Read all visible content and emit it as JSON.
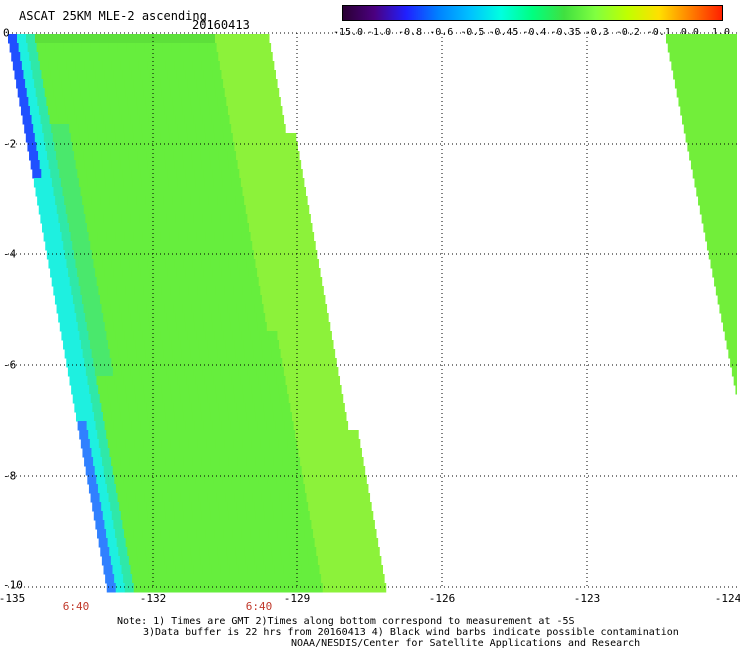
{
  "title": "ASCAT 25KM MLE-2 ascending",
  "date": "20160413",
  "colorbar": {
    "labels": [
      "-15.0",
      "-1.0",
      "-0.8",
      "-0.6",
      "-0.5",
      "-0.45",
      "-0.4",
      "-0.35",
      "-0.3",
      "-0.2",
      "-0.1",
      "0.0",
      "1.0"
    ],
    "colors": [
      "#2a0033",
      "#4b0080",
      "#2020ff",
      "#0080ff",
      "#00c0ff",
      "#00ffe0",
      "#00ff80",
      "#40e040",
      "#80ff40",
      "#c0ff00",
      "#ffe000",
      "#ff8000",
      "#ff2000"
    ]
  },
  "y_ticks": [
    "0",
    "-2",
    "-4",
    "-6",
    "-8",
    "-10"
  ],
  "x_ticks": [
    "-135",
    "-132",
    "-129",
    "-126",
    "-123",
    "-124"
  ],
  "times": [
    "6:40",
    "6:40"
  ],
  "notes": [
    "Note: 1) Times are GMT 2)Times along bottom correspond to measurement at -5S",
    "3)Data buffer is 22 hrs from 20160413 4) Black wind barbs indicate possible contamination",
    "NOAA/NESDIS/Center for Satellite Applications and Research"
  ]
}
